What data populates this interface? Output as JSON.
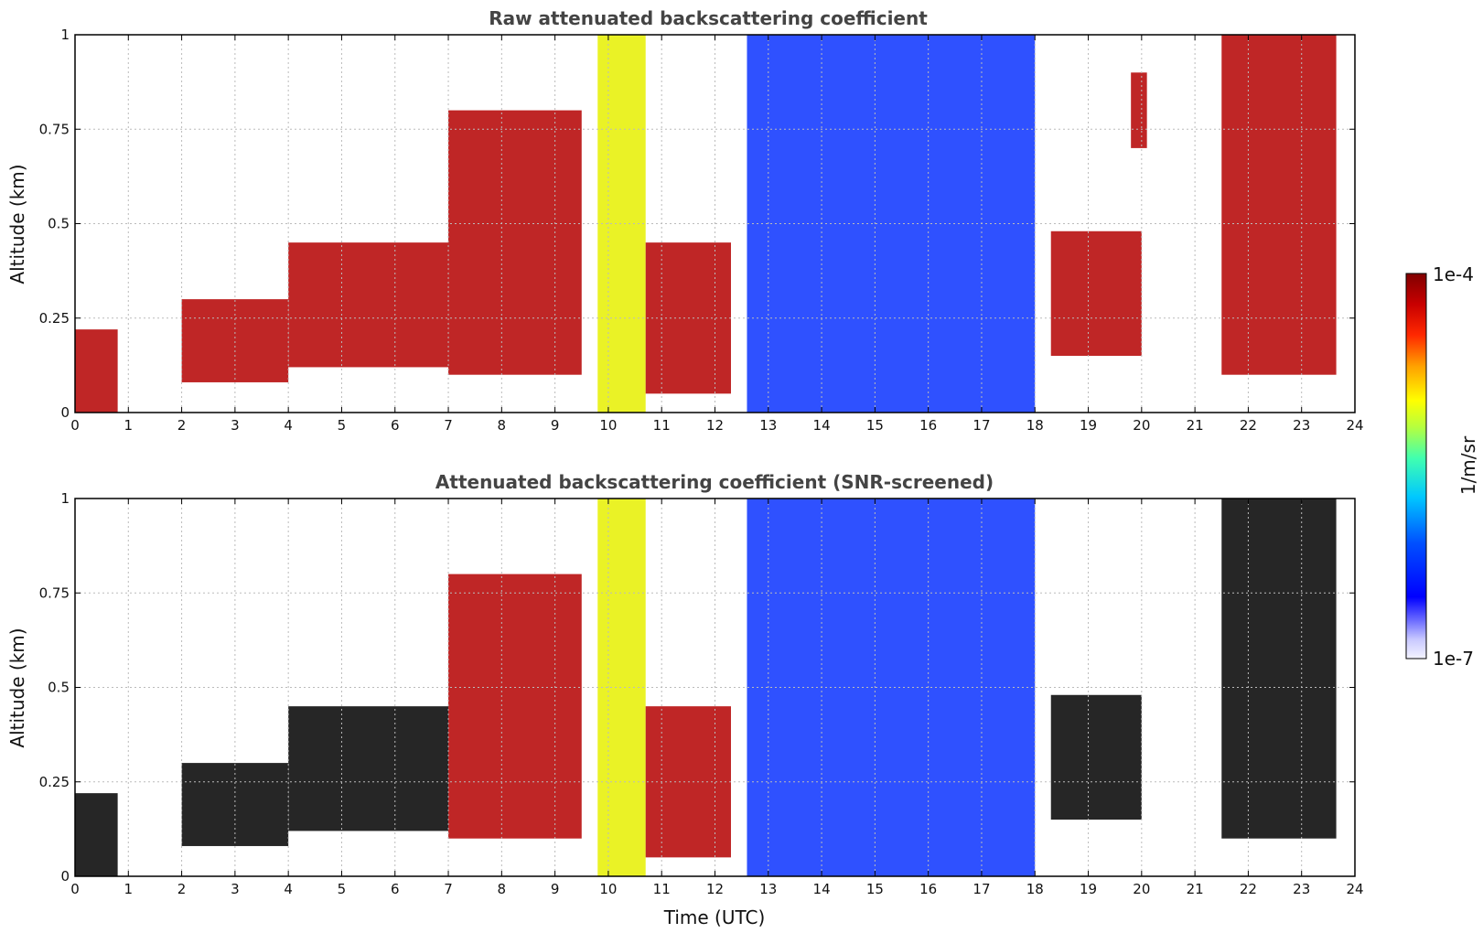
{
  "chart_data": [
    {
      "type": "heatmap",
      "title": "Raw attenuated backscattering coefficient",
      "xlabel": "",
      "ylabel": "Altitude (km)",
      "xlim": [
        0,
        24
      ],
      "ylim": [
        0,
        1
      ],
      "xticks": [
        "0",
        "1",
        "2",
        "3",
        "4",
        "5",
        "6",
        "7",
        "8",
        "9",
        "10",
        "11",
        "12",
        "13",
        "14",
        "15",
        "16",
        "17",
        "18",
        "19",
        "20",
        "21",
        "22",
        "23",
        "24"
      ],
      "yticks": [
        "0",
        "0.25",
        "0.5",
        "0.75",
        "1"
      ],
      "grid": true,
      "screened": false,
      "data_end_time": 23.65,
      "features": [
        {
          "time": [
            0,
            0.8
          ],
          "base_km": 0,
          "top_km": 0.22,
          "level": "high"
        },
        {
          "time": [
            2,
            4
          ],
          "base_km": 0.08,
          "top_km": 0.3,
          "level": "high"
        },
        {
          "time": [
            4,
            7
          ],
          "base_km": 0.12,
          "top_km": 0.45,
          "level": "high"
        },
        {
          "time": [
            7,
            9.5
          ],
          "base_km": 0.1,
          "top_km": 0.8,
          "level": "high"
        },
        {
          "time": [
            9.8,
            10.7
          ],
          "base_km": 0,
          "top_km": 1,
          "level": "medium"
        },
        {
          "time": [
            10.7,
            12.3
          ],
          "base_km": 0.05,
          "top_km": 0.45,
          "level": "high"
        },
        {
          "time": [
            12.6,
            18
          ],
          "base_km": 0,
          "top_km": 1,
          "level": "low"
        },
        {
          "time": [
            18.3,
            20
          ],
          "base_km": 0.15,
          "top_km": 0.48,
          "level": "high"
        },
        {
          "time": [
            19.8,
            20.1
          ],
          "base_km": 0.7,
          "top_km": 0.9,
          "level": "high"
        },
        {
          "time": [
            21.5,
            23.65
          ],
          "base_km": 0.1,
          "top_km": 1,
          "level": "high"
        }
      ]
    },
    {
      "type": "heatmap",
      "title": "Attenuated backscattering coefficient (SNR-screened)",
      "xlabel": "Time (UTC)",
      "ylabel": "Altitude (km)",
      "xlim": [
        0,
        24
      ],
      "ylim": [
        0,
        1
      ],
      "xticks": [
        "0",
        "1",
        "2",
        "3",
        "4",
        "5",
        "6",
        "7",
        "8",
        "9",
        "10",
        "11",
        "12",
        "13",
        "14",
        "15",
        "16",
        "17",
        "18",
        "19",
        "20",
        "21",
        "22",
        "23",
        "24"
      ],
      "yticks": [
        "0",
        "0.25",
        "0.5",
        "0.75",
        "1"
      ],
      "grid": true,
      "screened": true,
      "data_end_time": 23.65,
      "features": [
        {
          "time": [
            0,
            0.8
          ],
          "base_km": 0,
          "top_km": 0.22,
          "level": "saturated"
        },
        {
          "time": [
            2,
            4
          ],
          "base_km": 0.08,
          "top_km": 0.3,
          "level": "saturated"
        },
        {
          "time": [
            4,
            7
          ],
          "base_km": 0.12,
          "top_km": 0.45,
          "level": "saturated"
        },
        {
          "time": [
            7,
            9.5
          ],
          "base_km": 0.1,
          "top_km": 0.8,
          "level": "high"
        },
        {
          "time": [
            9.8,
            10.7
          ],
          "base_km": 0,
          "top_km": 1,
          "level": "medium"
        },
        {
          "time": [
            10.7,
            12.3
          ],
          "base_km": 0.05,
          "top_km": 0.45,
          "level": "high"
        },
        {
          "time": [
            12.6,
            18
          ],
          "base_km": 0,
          "top_km": 1,
          "level": "low"
        },
        {
          "time": [
            18.3,
            20
          ],
          "base_km": 0.15,
          "top_km": 0.48,
          "level": "saturated"
        },
        {
          "time": [
            21.5,
            23.65
          ],
          "base_km": 0.1,
          "top_km": 1,
          "level": "saturated"
        }
      ]
    }
  ],
  "colorbar": {
    "max_label": "1e-4",
    "min_label": "1e-7",
    "label": "1/m/sr",
    "scale": "log",
    "range": [
      1e-07,
      0.0001
    ]
  },
  "colors": {
    "saturated": "#000000",
    "high": "#b40000",
    "medium": "#e6f000",
    "low": "#0a32ff",
    "background": "#ffffff",
    "grid": "#bbbbbb",
    "title": "#444444"
  }
}
